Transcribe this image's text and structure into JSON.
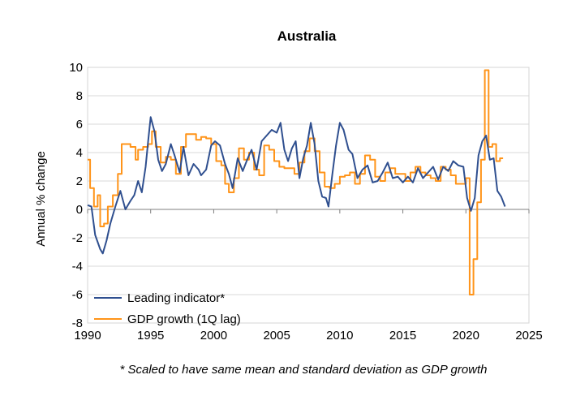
{
  "chart_data": {
    "type": "line",
    "title": "Australia",
    "xlabel": "",
    "ylabel": "Annual % change",
    "xlim": [
      1990,
      2025
    ],
    "ylim": [
      -8,
      10
    ],
    "x_ticks": [
      1990,
      1995,
      2000,
      2005,
      2010,
      2015,
      2020,
      2025
    ],
    "y_ticks": [
      -8,
      -6,
      -4,
      -2,
      0,
      2,
      4,
      6,
      8,
      10
    ],
    "grid": "horizontal",
    "legend_position": "bottom-left",
    "footnote": "* Scaled to have same mean and standard deviation as GDP growth",
    "series": [
      {
        "name": "Leading indicator*",
        "color": "#2F4F8F",
        "x": [
          1990.0,
          1990.3,
          1990.6,
          1991.0,
          1991.2,
          1991.5,
          1991.8,
          1992.2,
          1992.6,
          1993.0,
          1993.4,
          1993.7,
          1994.0,
          1994.3,
          1994.6,
          1994.8,
          1995.0,
          1995.3,
          1995.6,
          1995.9,
          1996.2,
          1996.6,
          1996.9,
          1997.3,
          1997.6,
          1998.0,
          1998.4,
          1998.8,
          1999.0,
          1999.4,
          1999.8,
          2000.1,
          2000.5,
          2000.9,
          2001.2,
          2001.5,
          2001.9,
          2002.3,
          2002.7,
          2003.0,
          2003.4,
          2003.8,
          2004.2,
          2004.6,
          2005.0,
          2005.3,
          2005.6,
          2005.9,
          2006.2,
          2006.5,
          2006.8,
          2007.1,
          2007.4,
          2007.7,
          2008.0,
          2008.3,
          2008.6,
          2008.9,
          2009.1,
          2009.4,
          2009.7,
          2010.0,
          2010.3,
          2010.7,
          2011.0,
          2011.4,
          2011.8,
          2012.2,
          2012.6,
          2013.0,
          2013.4,
          2013.8,
          2014.2,
          2014.6,
          2015.0,
          2015.4,
          2015.8,
          2016.2,
          2016.6,
          2017.0,
          2017.4,
          2017.8,
          2018.2,
          2018.6,
          2019.0,
          2019.4,
          2019.8,
          2020.1,
          2020.4,
          2020.7,
          2021.0,
          2021.3,
          2021.6,
          2021.9,
          2022.2,
          2022.5,
          2022.8,
          2023.1
        ],
        "values": [
          0.3,
          0.2,
          -1.8,
          -2.8,
          -3.1,
          -2.2,
          -1.0,
          0.2,
          1.3,
          0.0,
          0.6,
          1.0,
          2.0,
          1.2,
          3.0,
          4.8,
          6.5,
          5.5,
          3.5,
          2.7,
          3.2,
          4.6,
          3.8,
          2.6,
          4.4,
          2.4,
          3.2,
          2.8,
          2.4,
          2.8,
          4.5,
          4.8,
          4.5,
          3.2,
          2.5,
          1.5,
          3.6,
          2.7,
          3.6,
          4.2,
          2.8,
          4.8,
          5.2,
          5.6,
          5.4,
          6.1,
          4.2,
          3.4,
          4.3,
          4.8,
          2.2,
          3.6,
          4.5,
          6.1,
          4.6,
          2.0,
          0.9,
          0.8,
          0.2,
          2.4,
          4.5,
          6.1,
          5.6,
          4.2,
          3.9,
          2.2,
          2.8,
          3.1,
          1.9,
          2.0,
          2.6,
          3.3,
          2.2,
          2.3,
          1.9,
          2.3,
          1.9,
          2.9,
          2.2,
          2.6,
          3.0,
          2.1,
          3.0,
          2.7,
          3.4,
          3.1,
          3.0,
          0.8,
          -0.1,
          0.8,
          3.8,
          4.8,
          5.2,
          3.5,
          3.6,
          1.3,
          0.9,
          0.2
        ]
      },
      {
        "name": "GDP growth (1Q lag)",
        "color": "#FF9419",
        "x": [
          1990.0,
          1990.2,
          1990.5,
          1990.8,
          1991.0,
          1991.3,
          1991.6,
          1992.0,
          1992.4,
          1992.7,
          1993.0,
          1993.4,
          1993.8,
          1994.0,
          1994.4,
          1994.8,
          1995.1,
          1995.4,
          1995.8,
          1996.2,
          1996.6,
          1997.0,
          1997.4,
          1997.8,
          1998.2,
          1998.6,
          1999.0,
          1999.4,
          1999.8,
          2000.2,
          2000.6,
          2000.9,
          2001.2,
          2001.6,
          2002.0,
          2002.4,
          2002.8,
          2003.2,
          2003.6,
          2004.0,
          2004.4,
          2004.8,
          2005.2,
          2005.6,
          2006.0,
          2006.4,
          2006.8,
          2007.2,
          2007.6,
          2008.0,
          2008.4,
          2008.8,
          2009.2,
          2009.6,
          2010.0,
          2010.4,
          2010.8,
          2011.2,
          2011.6,
          2012.0,
          2012.4,
          2012.8,
          2013.2,
          2013.6,
          2014.0,
          2014.4,
          2014.8,
          2015.2,
          2015.6,
          2016.0,
          2016.4,
          2016.8,
          2017.2,
          2017.6,
          2018.0,
          2018.4,
          2018.8,
          2019.2,
          2019.6,
          2020.0,
          2020.3,
          2020.6,
          2020.9,
          2021.2,
          2021.5,
          2021.8,
          2022.1,
          2022.4,
          2022.7
        ],
        "values": [
          3.5,
          1.5,
          0.2,
          1.0,
          -1.2,
          -1.0,
          0.2,
          1.0,
          2.5,
          4.6,
          4.6,
          4.4,
          3.5,
          4.2,
          4.4,
          4.6,
          5.5,
          4.4,
          3.3,
          3.7,
          3.5,
          2.5,
          4.4,
          5.3,
          5.3,
          4.9,
          5.1,
          5.0,
          4.6,
          3.4,
          3.1,
          1.8,
          1.2,
          2.2,
          4.3,
          3.5,
          4.0,
          2.8,
          2.4,
          4.5,
          4.2,
          3.4,
          3.0,
          2.9,
          2.9,
          2.5,
          3.3,
          4.1,
          5.0,
          4.1,
          2.6,
          1.6,
          1.5,
          1.8,
          2.3,
          2.4,
          2.6,
          1.8,
          2.5,
          3.8,
          3.5,
          2.3,
          2.0,
          2.6,
          2.9,
          2.5,
          2.5,
          2.0,
          2.6,
          3.0,
          2.6,
          2.4,
          2.2,
          2.0,
          3.0,
          2.8,
          2.4,
          1.8,
          1.8,
          2.2,
          -6.0,
          -3.5,
          0.5,
          3.5,
          9.8,
          4.4,
          4.6,
          3.4,
          3.6
        ]
      }
    ]
  }
}
